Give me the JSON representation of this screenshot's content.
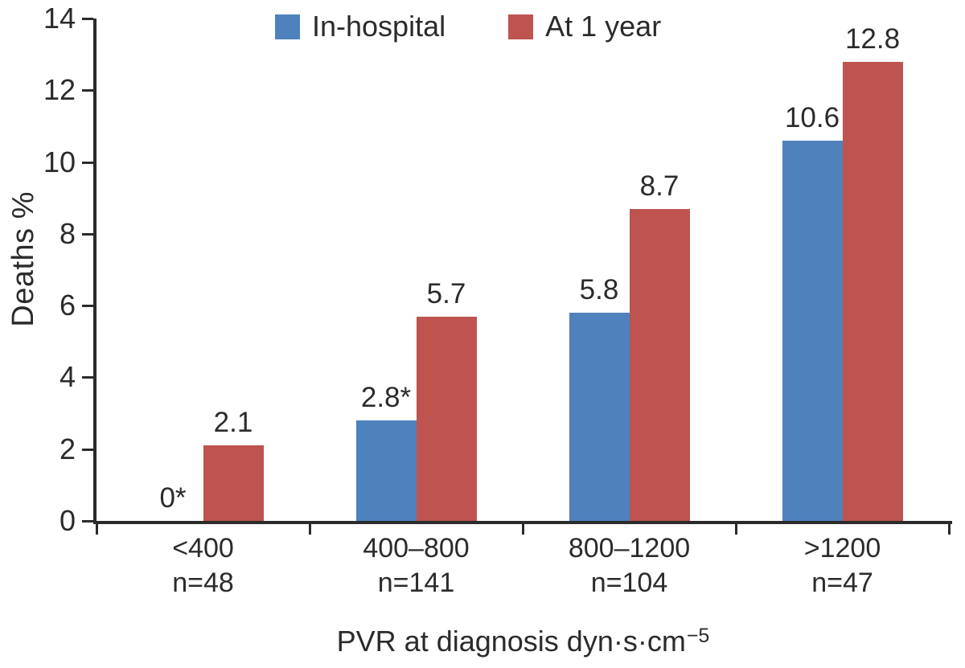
{
  "chart_data": {
    "type": "bar",
    "title": "",
    "ylabel": "Deaths %",
    "xlabel_base": "PVR at diagnosis dyn·s·cm",
    "xlabel_superscript": "−5",
    "ylim": [
      0,
      14
    ],
    "yticks": [
      0,
      2,
      4,
      6,
      8,
      10,
      12,
      14
    ],
    "grid": false,
    "legend_position": "top-center",
    "categories": [
      "<400",
      "400–800",
      "800–1200",
      ">1200"
    ],
    "category_counts": [
      "n=48",
      "n=141",
      "n=104",
      "n=47"
    ],
    "series": [
      {
        "name": "In-hospital",
        "color": "#4F81BD",
        "values": [
          0,
          2.8,
          5.8,
          10.6
        ],
        "value_labels": [
          "0*",
          "2.8*",
          "5.8",
          "10.6"
        ]
      },
      {
        "name": "At 1 year",
        "color": "#BE5350",
        "values": [
          2.1,
          5.7,
          8.7,
          12.8
        ],
        "value_labels": [
          "2.1",
          "5.7",
          "8.7",
          "12.8"
        ]
      }
    ],
    "axis_color": "#2B2B2B",
    "text_color": "#2B2B2B"
  }
}
